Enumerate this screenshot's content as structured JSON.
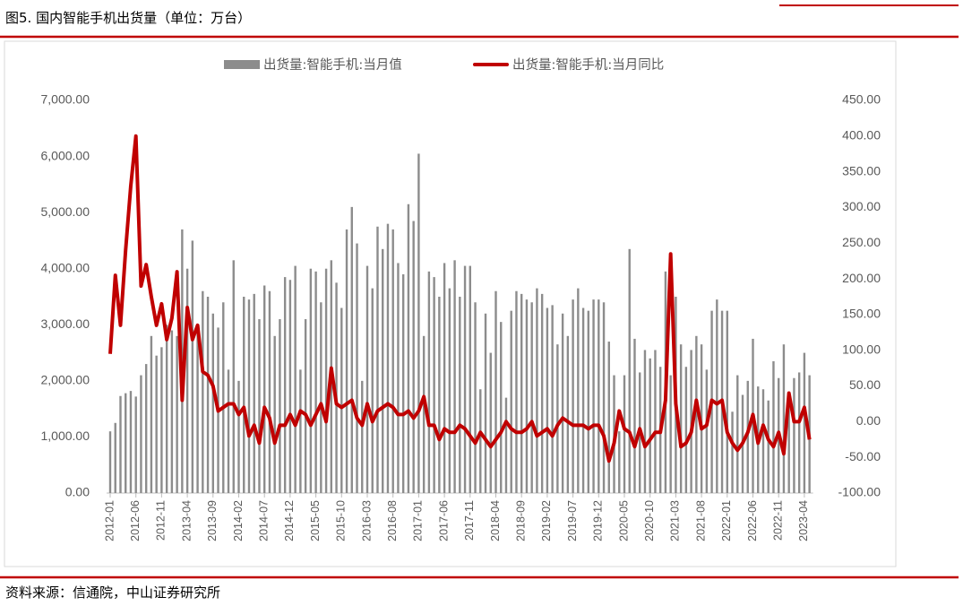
{
  "header": {
    "title": "图5. 国内智能手机出货量（单位：万台）"
  },
  "source": "资料来源：信通院，中山证券研究所",
  "chart_data": {
    "type": "bar",
    "categories": [
      "2012-01",
      null,
      null,
      null,
      null,
      "2012-06",
      null,
      null,
      null,
      null,
      "2012-11",
      null,
      null,
      null,
      null,
      "2013-04",
      null,
      null,
      null,
      null,
      "2013-09",
      null,
      null,
      null,
      null,
      "2014-02",
      null,
      null,
      null,
      null,
      "2014-07",
      null,
      null,
      null,
      null,
      "2014-12",
      null,
      null,
      null,
      null,
      "2015-05",
      null,
      null,
      null,
      null,
      "2015-10",
      null,
      null,
      null,
      null,
      "2016-03",
      null,
      null,
      null,
      null,
      "2016-08",
      null,
      null,
      null,
      null,
      "2017-01",
      null,
      null,
      null,
      null,
      "2017-06",
      null,
      null,
      null,
      null,
      "2017-11",
      null,
      null,
      null,
      null,
      "2018-04",
      null,
      null,
      null,
      null,
      "2018-09",
      null,
      null,
      null,
      null,
      "2019-02",
      null,
      null,
      null,
      null,
      "2019-07",
      null,
      null,
      null,
      null,
      "2019-12",
      null,
      null,
      null,
      null,
      "2020-05",
      null,
      null,
      null,
      null,
      "2020-10",
      null,
      null,
      null,
      null,
      "2021-03",
      null,
      null,
      null,
      null,
      "2021-08",
      null,
      null,
      null,
      null,
      "2022-01",
      null,
      null,
      null,
      null,
      "2022-06",
      null,
      null,
      null,
      null,
      "2022-11",
      null,
      null,
      null,
      null,
      "2023-04",
      null
    ],
    "series": [
      {
        "name": "出货量:智能手机:当月值",
        "type": "bar",
        "color": "#8c8c8c",
        "values": [
          1100,
          1250,
          1730,
          1780,
          1820,
          1720,
          2100,
          2300,
          2800,
          2450,
          2600,
          3000,
          2900,
          2800,
          4700,
          4000,
          4500,
          3000,
          3600,
          3500,
          3200,
          2950,
          3400,
          2200,
          4150,
          2000,
          3500,
          3450,
          3550,
          3100,
          3700,
          3600,
          2800,
          3100,
          3850,
          3800,
          4050,
          2200,
          3100,
          4000,
          3950,
          3400,
          4000,
          4150,
          3750,
          3300,
          4700,
          5100,
          4450,
          2000,
          4050,
          3650,
          4750,
          4350,
          4800,
          4700,
          4100,
          3900,
          5150,
          4850,
          6050,
          2800,
          3950,
          3850,
          3500,
          4100,
          3650,
          4150,
          3500,
          4050,
          4050,
          3400,
          1850,
          3200,
          2500,
          3600,
          3050,
          1700,
          3250,
          3600,
          3550,
          3450,
          3400,
          3650,
          3550,
          3300,
          3350,
          2650,
          3200,
          2800,
          3450,
          3650,
          3300,
          3250,
          3450,
          3450,
          3400,
          2700,
          2100,
          1100,
          2100,
          4350,
          2750,
          2150,
          2550,
          2400,
          2550,
          2250,
          3950,
          2100,
          3500,
          2650,
          2250,
          2550,
          2800,
          2650,
          2200,
          3250,
          3450,
          3250,
          3250,
          1450,
          2100,
          1750,
          2000,
          2750,
          1900,
          1850,
          1650,
          2350,
          2050,
          2650,
          1800,
          2050,
          2150,
          2500,
          2100
        ]
      },
      {
        "name": "出货量:智能手机:当月同比",
        "type": "line",
        "axis": "y2",
        "color": "#c00000",
        "values": [
          95,
          205,
          135,
          240,
          330,
          400,
          190,
          220,
          175,
          135,
          165,
          115,
          145,
          210,
          30,
          160,
          115,
          135,
          70,
          65,
          50,
          15,
          20,
          25,
          25,
          10,
          20,
          -20,
          -5,
          -30,
          20,
          5,
          -30,
          -5,
          -5,
          10,
          -5,
          15,
          10,
          -5,
          10,
          25,
          0,
          75,
          25,
          20,
          25,
          30,
          5,
          -5,
          25,
          0,
          15,
          20,
          25,
          20,
          10,
          10,
          15,
          5,
          15,
          35,
          -5,
          -5,
          -25,
          -10,
          -15,
          -15,
          -5,
          -10,
          -20,
          -30,
          -15,
          -25,
          -35,
          -25,
          -15,
          0,
          -10,
          -15,
          -15,
          -10,
          0,
          -20,
          -15,
          -10,
          -20,
          -5,
          5,
          0,
          -5,
          -5,
          -5,
          -10,
          -5,
          -5,
          -20,
          -55,
          -30,
          15,
          -10,
          -15,
          -35,
          -10,
          -35,
          -25,
          -15,
          -15,
          30,
          235,
          25,
          -35,
          -30,
          -15,
          30,
          -10,
          -5,
          30,
          25,
          30,
          -15,
          -30,
          -40,
          -30,
          -15,
          10,
          -30,
          -5,
          -25,
          -35,
          -15,
          -45,
          40,
          0,
          0,
          20,
          -25
        ]
      }
    ],
    "ylim": [
      0,
      7000
    ],
    "yticks": [
      {
        "value": 0,
        "label": "0.00"
      },
      {
        "value": 1000,
        "label": "1,000.00"
      },
      {
        "value": 2000,
        "label": "2,000.00"
      },
      {
        "value": 3000,
        "label": "3,000.00"
      },
      {
        "value": 4000,
        "label": "4,000.00"
      },
      {
        "value": 5000,
        "label": "5,000.00"
      },
      {
        "value": 6000,
        "label": "6,000.00"
      },
      {
        "value": 7000,
        "label": "7,000.00"
      }
    ],
    "y2lim": [
      -100,
      450
    ],
    "y2ticks": [
      {
        "value": -100,
        "label": "-100.00"
      },
      {
        "value": -50,
        "label": "-50.00"
      },
      {
        "value": 0,
        "label": "0.00"
      },
      {
        "value": 50,
        "label": "50.00"
      },
      {
        "value": 100,
        "label": "100.00"
      },
      {
        "value": 150,
        "label": "150.00"
      },
      {
        "value": 200,
        "label": "200.00"
      },
      {
        "value": 250,
        "label": "250.00"
      },
      {
        "value": 300,
        "label": "300.00"
      },
      {
        "value": 350,
        "label": "350.00"
      },
      {
        "value": 400,
        "label": "400.00"
      },
      {
        "value": 450,
        "label": "450.00"
      }
    ],
    "legend": "top"
  }
}
